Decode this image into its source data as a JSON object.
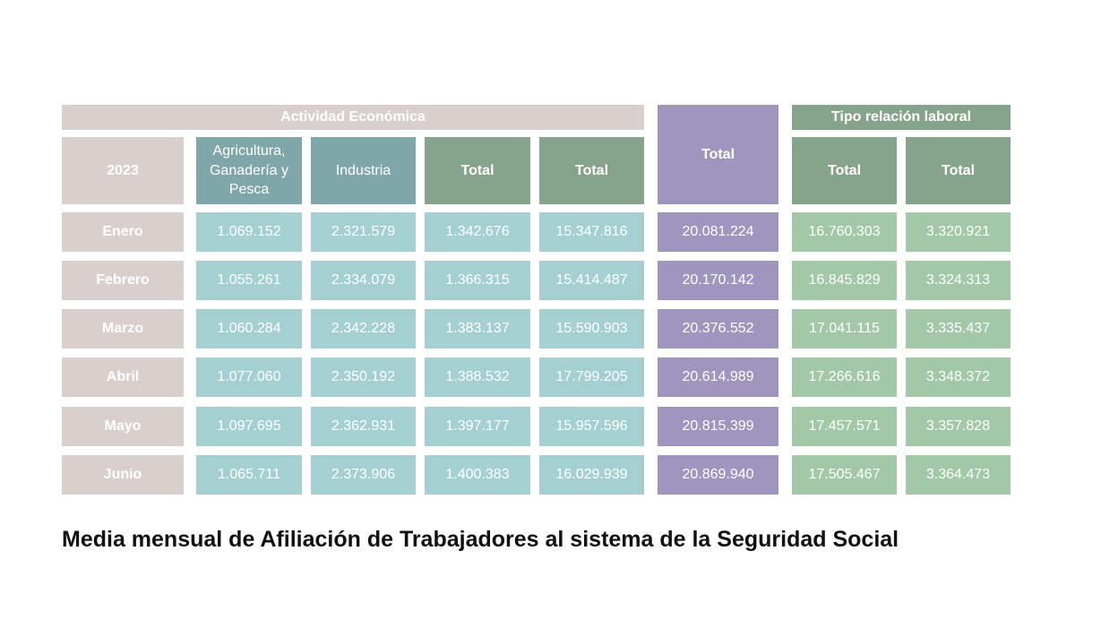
{
  "chart_data": {
    "type": "table",
    "title": "Media mensual de Afiliación de Trabajadores al sistema de la Seguridad Social",
    "group_headers": {
      "activity": "Actividad Económica",
      "relation": "Tipo relación laboral"
    },
    "year_label": "2023",
    "columns": [
      "Agricultura, Ganadería y Pesca",
      "Industria",
      "Total",
      "Total",
      "Total",
      "Total",
      "Total"
    ],
    "rows": [
      {
        "month": "Enero",
        "values": [
          "1.069.152",
          "2.321.579",
          "1.342.676",
          "15.347.816",
          "20.081.224",
          "16.760.303",
          "3.320.921"
        ]
      },
      {
        "month": "Febrero",
        "values": [
          "1.055.261",
          "2.334.079",
          "1.366.315",
          "15.414.487",
          "20.170.142",
          "16.845.829",
          "3.324.313"
        ]
      },
      {
        "month": "Marzo",
        "values": [
          "1.060.284",
          "2.342.228",
          "1.383.137",
          "15.590.903",
          "20.376.552",
          "17.041.115",
          "3.335.437"
        ]
      },
      {
        "month": "Abril",
        "values": [
          "1.077.060",
          "2.350.192",
          "1.388.532",
          "17.799.205",
          "20.614.989",
          "17.266.616",
          "3.348.372"
        ]
      },
      {
        "month": "Mayo",
        "values": [
          "1.097.695",
          "2.362.931",
          "1.397.177",
          "15.957.596",
          "20.815.399",
          "17.457.571",
          "3.357.828"
        ]
      },
      {
        "month": "Junio",
        "values": [
          "1.065.711",
          "2.373.906",
          "1.400.383",
          "16.029.939",
          "20.869.940",
          "17.505.467",
          "3.364.473"
        ]
      }
    ],
    "colors": {
      "month": "#d9cfcd",
      "activity_header": "#7fa6a9",
      "total_header": "#86a48c",
      "activity_cell": "#a5d0d2",
      "total_cell": "#a095bf",
      "relation_cell": "#a3c8a7"
    }
  }
}
